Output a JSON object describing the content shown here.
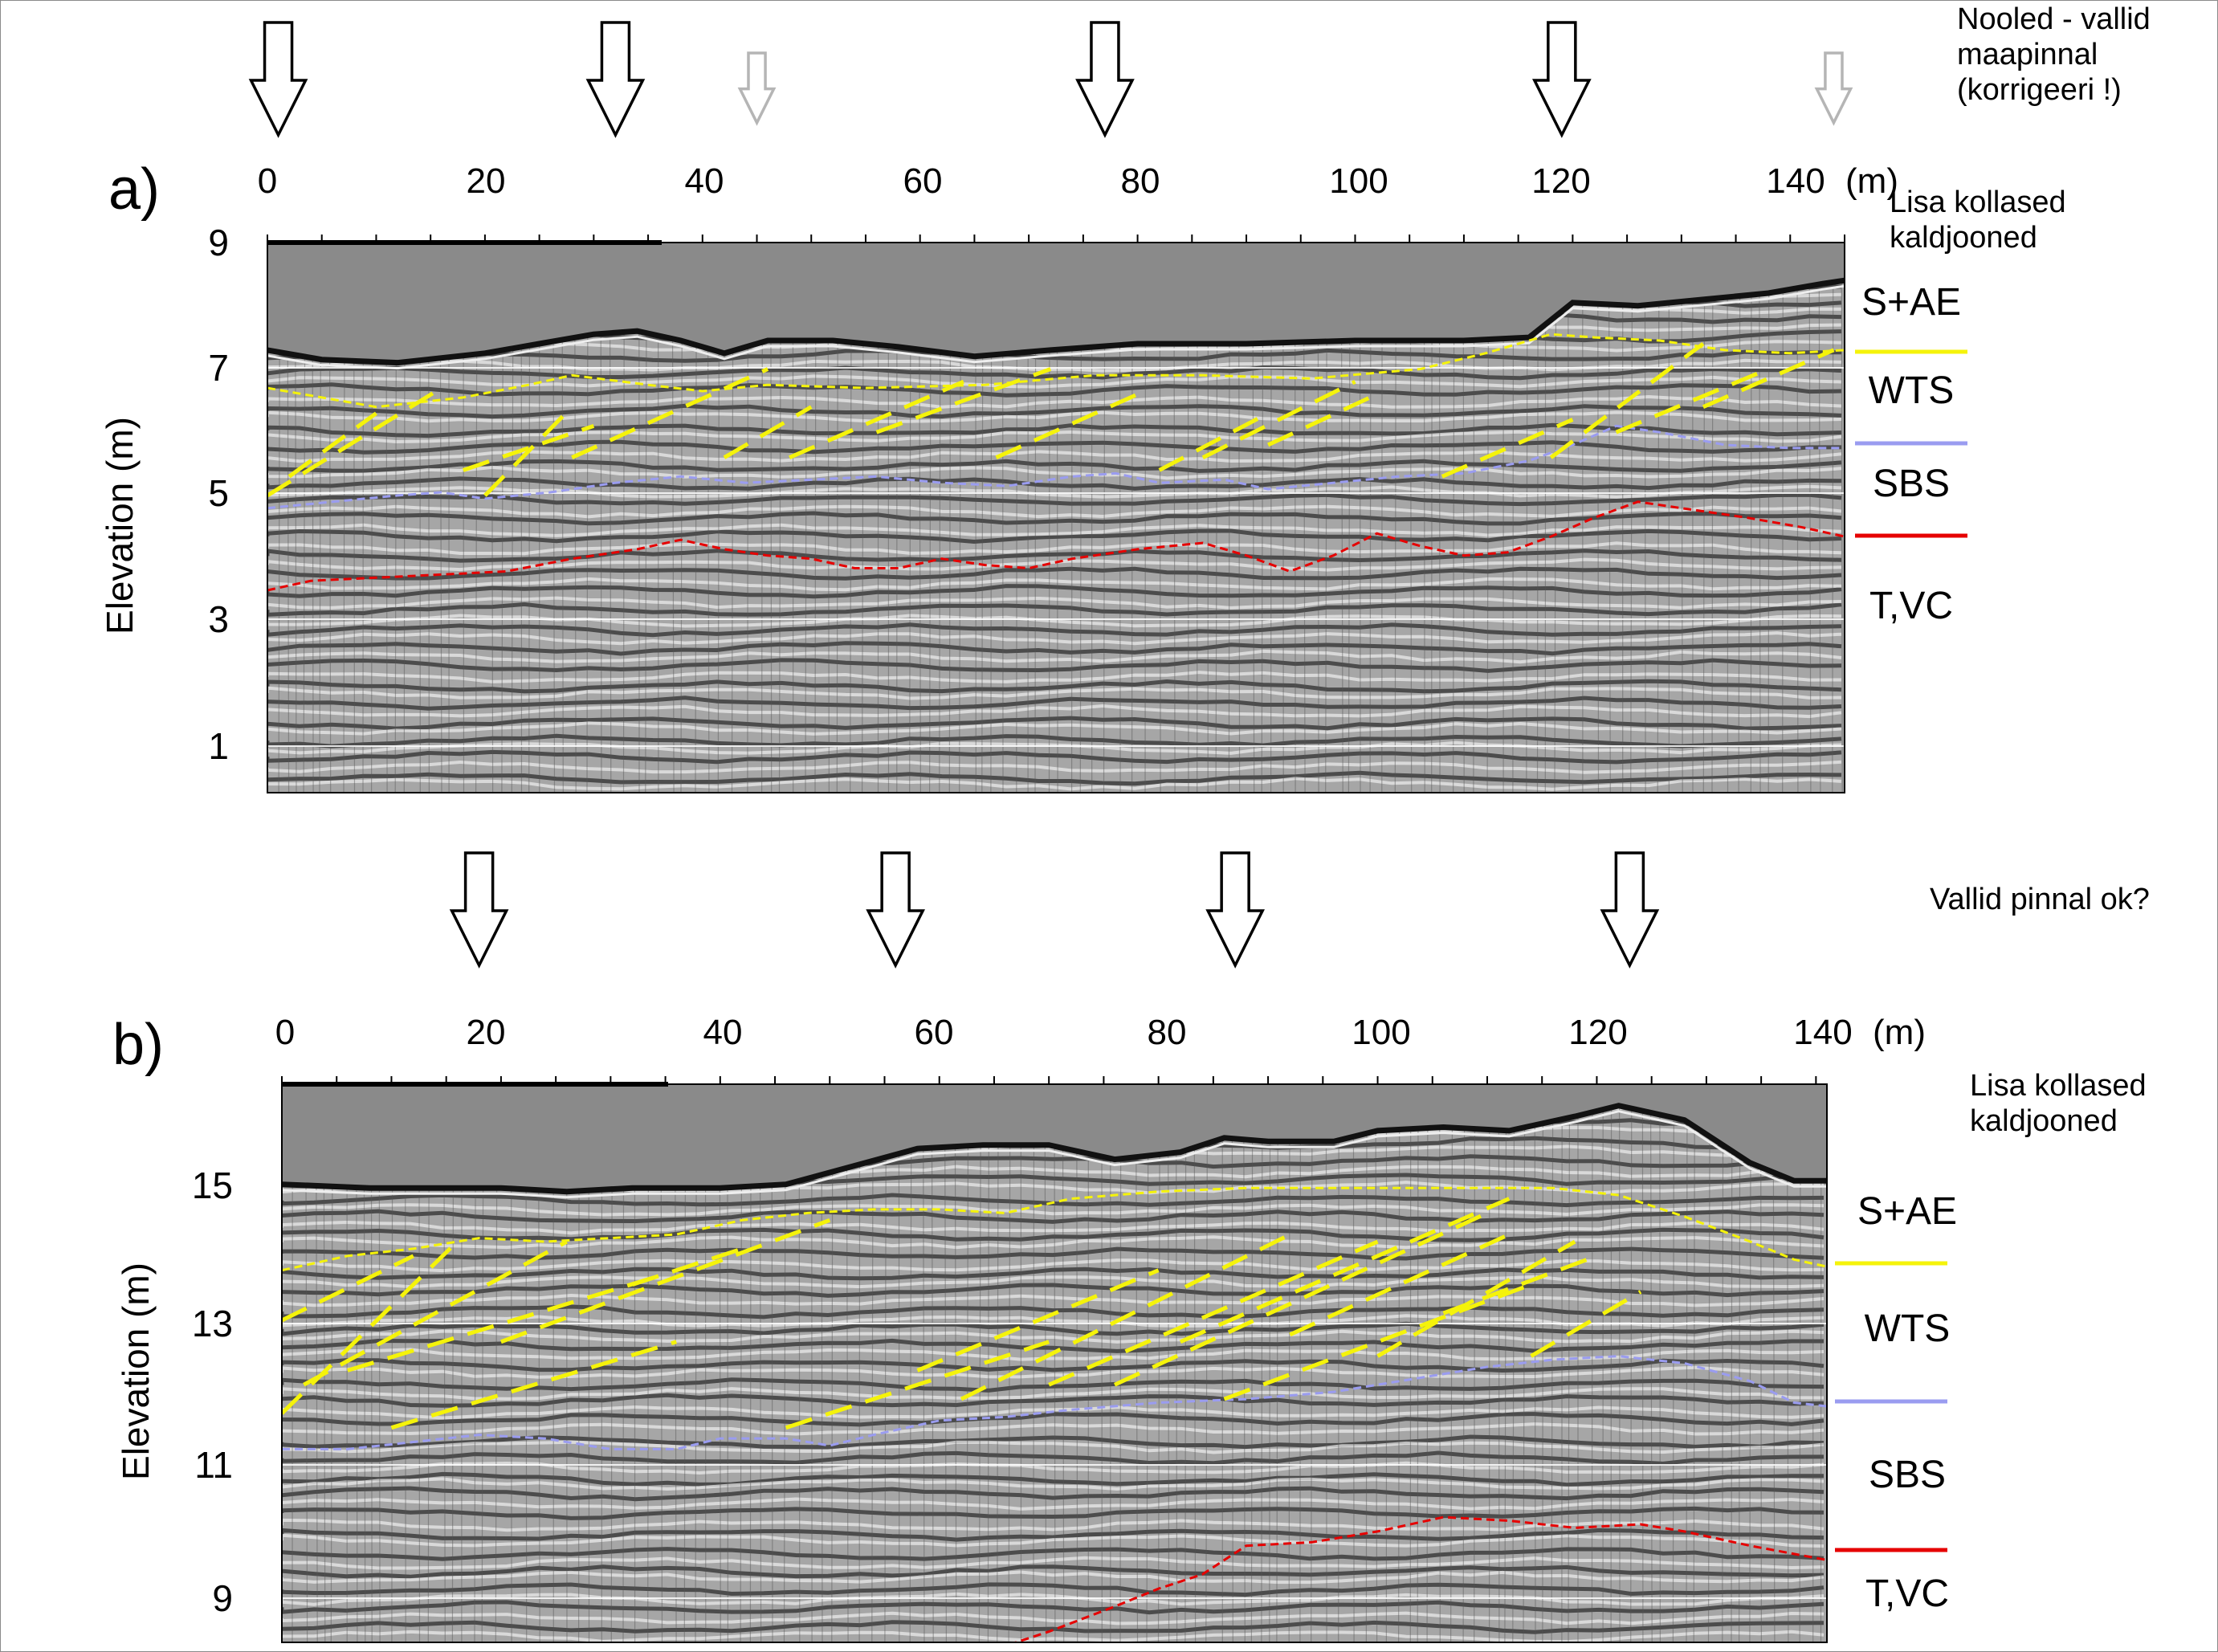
{
  "notes": {
    "arrows_note": [
      "Nooled - vallid",
      "maapinnal",
      "(korrigeeri !)"
    ],
    "yellow_note_a": [
      "Lisa kollased",
      "kaldjooned"
    ],
    "ridges_ok_note": "Vallid pinnal ok?",
    "yellow_note_b": [
      "Lisa kollased",
      "kaldjooned"
    ]
  },
  "colors": {
    "surface": "#f5f30a",
    "water_table": "#9a9cf0",
    "base": "#e60000",
    "yellow_dip": "#f5f30a",
    "air": "#8a8a8a"
  },
  "panels": [
    {
      "panel_label": "a)",
      "x_unit": "(m)",
      "ylabel": "Elevation (m)",
      "x_ticks": [
        "0",
        "20",
        "40",
        "60",
        "80",
        "100",
        "120",
        "140"
      ],
      "y_ticks": [
        "9",
        "7",
        "5",
        "3",
        "1"
      ],
      "x_range": [
        0,
        145
      ],
      "y_range": [
        0.3,
        9.0
      ],
      "ridge_arrows_black_m": [
        1,
        32,
        77,
        119
      ],
      "ridge_arrows_grey_m": [
        45,
        144
      ],
      "units": [
        "S+AE",
        "WTS",
        "SBS",
        "T,VC"
      ],
      "ground_surface": [
        [
          0,
          7.3
        ],
        [
          5,
          7.15
        ],
        [
          12,
          7.1
        ],
        [
          20,
          7.25
        ],
        [
          25,
          7.4
        ],
        [
          30,
          7.55
        ],
        [
          34,
          7.6
        ],
        [
          38,
          7.45
        ],
        [
          42,
          7.25
        ],
        [
          46,
          7.45
        ],
        [
          52,
          7.45
        ],
        [
          58,
          7.35
        ],
        [
          65,
          7.2
        ],
        [
          72,
          7.3
        ],
        [
          80,
          7.4
        ],
        [
          90,
          7.4
        ],
        [
          100,
          7.45
        ],
        [
          110,
          7.45
        ],
        [
          116,
          7.5
        ],
        [
          120,
          8.05
        ],
        [
          126,
          8.0
        ],
        [
          132,
          8.1
        ],
        [
          138,
          8.2
        ],
        [
          143,
          8.35
        ],
        [
          145,
          8.4
        ]
      ],
      "surface_boundary": [
        [
          0,
          6.7
        ],
        [
          5,
          6.55
        ],
        [
          10,
          6.4
        ],
        [
          18,
          6.55
        ],
        [
          24,
          6.75
        ],
        [
          28,
          6.9
        ],
        [
          35,
          6.75
        ],
        [
          40,
          6.65
        ],
        [
          46,
          6.75
        ],
        [
          55,
          6.7
        ],
        [
          66,
          6.75
        ],
        [
          76,
          6.9
        ],
        [
          86,
          6.9
        ],
        [
          96,
          6.85
        ],
        [
          106,
          7.0
        ],
        [
          112,
          7.25
        ],
        [
          118,
          7.55
        ],
        [
          122,
          7.5
        ],
        [
          128,
          7.45
        ],
        [
          134,
          7.3
        ],
        [
          140,
          7.25
        ],
        [
          145,
          7.3
        ]
      ],
      "water_table": [
        [
          0,
          4.8
        ],
        [
          6,
          4.9
        ],
        [
          12,
          5.0
        ],
        [
          16,
          5.05
        ],
        [
          20,
          4.95
        ],
        [
          26,
          5.05
        ],
        [
          32,
          5.2
        ],
        [
          38,
          5.3
        ],
        [
          44,
          5.2
        ],
        [
          50,
          5.25
        ],
        [
          56,
          5.3
        ],
        [
          62,
          5.2
        ],
        [
          68,
          5.15
        ],
        [
          74,
          5.3
        ],
        [
          78,
          5.35
        ],
        [
          82,
          5.2
        ],
        [
          88,
          5.25
        ],
        [
          92,
          5.1
        ],
        [
          98,
          5.2
        ],
        [
          104,
          5.3
        ],
        [
          110,
          5.35
        ],
        [
          116,
          5.55
        ],
        [
          120,
          5.8
        ],
        [
          124,
          6.1
        ],
        [
          128,
          6.0
        ],
        [
          134,
          5.8
        ],
        [
          140,
          5.75
        ],
        [
          145,
          5.75
        ]
      ],
      "base": [
        [
          0,
          3.5
        ],
        [
          4,
          3.65
        ],
        [
          10,
          3.7
        ],
        [
          16,
          3.75
        ],
        [
          22,
          3.8
        ],
        [
          28,
          4.0
        ],
        [
          34,
          4.15
        ],
        [
          38,
          4.3
        ],
        [
          42,
          4.15
        ],
        [
          46,
          4.05
        ],
        [
          50,
          4.0
        ],
        [
          54,
          3.85
        ],
        [
          58,
          3.85
        ],
        [
          62,
          4.0
        ],
        [
          66,
          3.9
        ],
        [
          70,
          3.85
        ],
        [
          74,
          4.0
        ],
        [
          80,
          4.15
        ],
        [
          86,
          4.25
        ],
        [
          90,
          4.05
        ],
        [
          94,
          3.8
        ],
        [
          98,
          4.05
        ],
        [
          102,
          4.4
        ],
        [
          106,
          4.2
        ],
        [
          110,
          4.05
        ],
        [
          114,
          4.1
        ],
        [
          118,
          4.35
        ],
        [
          122,
          4.65
        ],
        [
          126,
          4.9
        ],
        [
          130,
          4.8
        ],
        [
          136,
          4.65
        ],
        [
          141,
          4.5
        ],
        [
          145,
          4.35
        ]
      ],
      "dip_lines": [
        [
          [
            0,
            5.0
          ],
          [
            16,
            6.7
          ]
        ],
        [
          [
            2,
            5.3
          ],
          [
            10,
            6.3
          ]
        ],
        [
          [
            20,
            5.0
          ],
          [
            28,
            6.4
          ]
        ],
        [
          [
            18,
            5.4
          ],
          [
            30,
            6.1
          ]
        ],
        [
          [
            28,
            5.6
          ],
          [
            46,
            7.0
          ]
        ],
        [
          [
            42,
            5.6
          ],
          [
            50,
            6.4
          ]
        ],
        [
          [
            48,
            5.6
          ],
          [
            64,
            6.8
          ]
        ],
        [
          [
            56,
            6.0
          ],
          [
            72,
            7.0
          ]
        ],
        [
          [
            67,
            5.6
          ],
          [
            80,
            6.6
          ]
        ],
        [
          [
            82,
            5.4
          ],
          [
            92,
            6.3
          ]
        ],
        [
          [
            86,
            5.6
          ],
          [
            100,
            6.8
          ]
        ],
        [
          [
            92,
            5.8
          ],
          [
            102,
            6.6
          ]
        ],
        [
          [
            108,
            5.3
          ],
          [
            120,
            6.2
          ]
        ],
        [
          [
            118,
            5.6
          ],
          [
            132,
            7.4
          ]
        ],
        [
          [
            124,
            6.0
          ],
          [
            138,
            7.0
          ]
        ],
        [
          [
            132,
            6.4
          ],
          [
            144,
            7.3
          ]
        ]
      ]
    },
    {
      "panel_label": "b)",
      "x_unit": "(m)",
      "ylabel": "Elevation (m)",
      "x_ticks": [
        "0",
        "20",
        "40",
        "60",
        "80",
        "100",
        "120",
        "140"
      ],
      "y_ticks": [
        "15",
        "13",
        "11",
        "9"
      ],
      "x_range": [
        0,
        141
      ],
      "y_range": [
        8.6,
        16.4
      ],
      "ridge_arrows_black_m": [
        18,
        56,
        87,
        123
      ],
      "ridge_arrows_grey_m": [],
      "units": [
        "S+AE",
        "WTS",
        "SBS",
        "T,VC"
      ],
      "ground_surface": [
        [
          0,
          15.0
        ],
        [
          8,
          14.95
        ],
        [
          14,
          14.95
        ],
        [
          20,
          14.95
        ],
        [
          26,
          14.9
        ],
        [
          32,
          14.95
        ],
        [
          40,
          14.95
        ],
        [
          46,
          15.0
        ],
        [
          52,
          15.25
        ],
        [
          58,
          15.5
        ],
        [
          64,
          15.55
        ],
        [
          70,
          15.55
        ],
        [
          76,
          15.35
        ],
        [
          82,
          15.45
        ],
        [
          86,
          15.65
        ],
        [
          90,
          15.6
        ],
        [
          96,
          15.6
        ],
        [
          100,
          15.75
        ],
        [
          106,
          15.8
        ],
        [
          112,
          15.75
        ],
        [
          118,
          15.95
        ],
        [
          122,
          16.1
        ],
        [
          128,
          15.9
        ],
        [
          134,
          15.3
        ],
        [
          138,
          15.05
        ],
        [
          141,
          15.05
        ]
      ],
      "surface_boundary": [
        [
          0,
          13.8
        ],
        [
          6,
          14.0
        ],
        [
          12,
          14.1
        ],
        [
          18,
          14.25
        ],
        [
          24,
          14.2
        ],
        [
          30,
          14.25
        ],
        [
          36,
          14.3
        ],
        [
          42,
          14.5
        ],
        [
          48,
          14.6
        ],
        [
          54,
          14.65
        ],
        [
          60,
          14.65
        ],
        [
          66,
          14.6
        ],
        [
          72,
          14.8
        ],
        [
          80,
          14.9
        ],
        [
          88,
          14.95
        ],
        [
          96,
          14.95
        ],
        [
          104,
          14.95
        ],
        [
          110,
          14.95
        ],
        [
          116,
          14.95
        ],
        [
          122,
          14.85
        ],
        [
          128,
          14.55
        ],
        [
          134,
          14.2
        ],
        [
          138,
          13.95
        ],
        [
          141,
          13.85
        ]
      ],
      "water_table": [
        [
          0,
          11.3
        ],
        [
          6,
          11.3
        ],
        [
          12,
          11.4
        ],
        [
          18,
          11.5
        ],
        [
          24,
          11.45
        ],
        [
          30,
          11.3
        ],
        [
          36,
          11.3
        ],
        [
          40,
          11.45
        ],
        [
          46,
          11.45
        ],
        [
          50,
          11.35
        ],
        [
          54,
          11.5
        ],
        [
          60,
          11.7
        ],
        [
          66,
          11.75
        ],
        [
          72,
          11.85
        ],
        [
          80,
          11.95
        ],
        [
          88,
          12.0
        ],
        [
          96,
          12.1
        ],
        [
          104,
          12.3
        ],
        [
          110,
          12.45
        ],
        [
          116,
          12.55
        ],
        [
          122,
          12.6
        ],
        [
          128,
          12.5
        ],
        [
          134,
          12.25
        ],
        [
          138,
          11.95
        ],
        [
          141,
          11.9
        ]
      ],
      "base": [
        [
          63,
          8.4
        ],
        [
          70,
          8.75
        ],
        [
          76,
          9.1
        ],
        [
          80,
          9.35
        ],
        [
          84,
          9.55
        ],
        [
          88,
          9.95
        ],
        [
          94,
          10.0
        ],
        [
          100,
          10.15
        ],
        [
          106,
          10.35
        ],
        [
          112,
          10.3
        ],
        [
          118,
          10.2
        ],
        [
          124,
          10.25
        ],
        [
          128,
          10.15
        ],
        [
          134,
          9.95
        ],
        [
          141,
          9.75
        ]
      ],
      "dip_lines": [
        [
          [
            0,
            11.8
          ],
          [
            16,
            14.2
          ]
        ],
        [
          [
            0,
            13.1
          ],
          [
            12,
            14.0
          ]
        ],
        [
          [
            2,
            12.2
          ],
          [
            26,
            14.2
          ]
        ],
        [
          [
            6,
            12.4
          ],
          [
            34,
            13.7
          ]
        ],
        [
          [
            10,
            11.6
          ],
          [
            36,
            12.8
          ]
        ],
        [
          [
            20,
            12.8
          ],
          [
            50,
            14.5
          ]
        ],
        [
          [
            32,
            13.6
          ],
          [
            42,
            14.1
          ]
        ],
        [
          [
            46,
            11.6
          ],
          [
            70,
            12.8
          ]
        ],
        [
          [
            58,
            12.4
          ],
          [
            80,
            13.8
          ]
        ],
        [
          [
            62,
            12.0
          ],
          [
            92,
            14.3
          ]
        ],
        [
          [
            70,
            12.2
          ],
          [
            100,
            14.2
          ]
        ],
        [
          [
            76,
            12.2
          ],
          [
            110,
            14.6
          ]
        ],
        [
          [
            82,
            12.8
          ],
          [
            112,
            14.8
          ]
        ],
        [
          [
            86,
            12.0
          ],
          [
            114,
            13.6
          ]
        ],
        [
          [
            92,
            12.9
          ],
          [
            112,
            14.3
          ]
        ],
        [
          [
            100,
            12.6
          ],
          [
            118,
            14.2
          ]
        ],
        [
          [
            106,
            13.2
          ],
          [
            120,
            14.0
          ]
        ],
        [
          [
            114,
            12.6
          ],
          [
            124,
            13.5
          ]
        ]
      ]
    }
  ]
}
